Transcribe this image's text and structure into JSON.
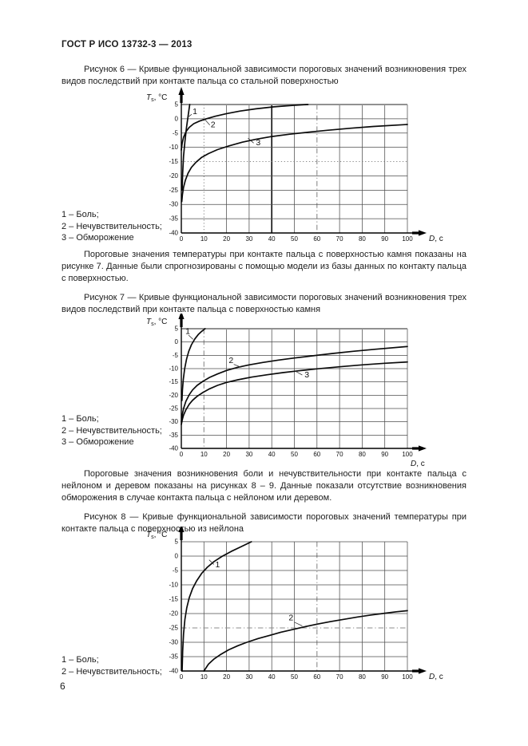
{
  "page": {
    "header": "ГОСТ Р ИСО 13732-3 — 2013",
    "number": "6"
  },
  "paragraphs": {
    "after_fig6": "Пороговые значения температуры при контакте пальца с поверхностью камня показаны на рисунке 7. Данные были спрогнозированы с помощью модели из базы данных по контакту пальца с поверхностью.",
    "after_fig7": "Пороговые значения возникновения боли и нечувствительности при контакте пальца с нейлоном и деревом показаны на рисунках 8 – 9. Данные показали отсутствие возникновения обморожения в случае контакта пальца с нейлоном или деревом."
  },
  "figures": [
    {
      "caption": "Рисунок 6 — Кривые функциональной зависимости пороговых значений возникновения трех видов последствий при контакте пальца со стальной поверхностью",
      "legend": [
        "1 – Боль;",
        "2 – Нечувствительность;",
        "3 – Обморожение"
      ]
    },
    {
      "caption": "Рисунок 7 — Кривые функциональной зависимости пороговых значений возникновения трех видов последствий при контакте пальца с поверхностью камня",
      "legend": [
        "1 – Боль;",
        "2 – Нечувствительность;",
        "3 – Обморожение"
      ]
    },
    {
      "caption": "Рисунок 8 — Кривые функциональной зависимости пороговых значений температуры при контакте пальца с поверхностью из нейлона",
      "legend": [
        "1 – Боль;",
        "2 – Нечувствительность;"
      ]
    }
  ],
  "chart_data": [
    {
      "type": "line",
      "figure": "6",
      "surface": "сталь",
      "xlabel": {
        "base": "D",
        "unit": ", с"
      },
      "ylabel": {
        "base": "T",
        "sub": "s",
        "unit": ", °C"
      },
      "xlim": [
        0,
        100
      ],
      "ylim": [
        -40,
        5
      ],
      "xticks": [
        0,
        10,
        20,
        30,
        40,
        50,
        60,
        70,
        80,
        90,
        100
      ],
      "yticks": [
        5,
        0,
        -5,
        -10,
        -15,
        -20,
        -25,
        -30,
        -35,
        -40
      ],
      "grid": true,
      "special_lines": [
        {
          "axis": "x",
          "at": 10,
          "style": "dotted"
        },
        {
          "axis": "x",
          "at": 40,
          "style": "thick"
        },
        {
          "axis": "x",
          "at": 60,
          "style": "dashdot"
        },
        {
          "axis": "y",
          "at": -15,
          "style": "dotted"
        },
        {
          "axis": "y",
          "at": 5,
          "style": "graythick"
        }
      ],
      "series": [
        {
          "name": "1",
          "label": "Боль",
          "points": [
            [
              0.35,
              -25
            ],
            [
              0.6,
              -19
            ],
            [
              1,
              -13
            ],
            [
              1.6,
              -8
            ],
            [
              2.3,
              -3
            ],
            [
              3,
              1
            ],
            [
              3.7,
              5
            ]
          ],
          "label_pos": [
            5,
            1.6
          ],
          "leader": [
            [
              4.6,
              1.6
            ],
            [
              2.9,
              0.5
            ]
          ]
        },
        {
          "name": "2",
          "label": "Нечувствительность",
          "points": [
            [
              0,
              -11
            ],
            [
              0.4,
              -8.5
            ],
            [
              1,
              -6.5
            ],
            [
              2,
              -4.6
            ],
            [
              3.5,
              -3
            ],
            [
              5.5,
              -1.7
            ],
            [
              8,
              -0.8
            ],
            [
              11,
              0
            ],
            [
              15,
              0.9
            ],
            [
              20,
              1.8
            ],
            [
              26,
              2.7
            ],
            [
              33,
              3.5
            ],
            [
              41,
              4.2
            ],
            [
              49,
              4.7
            ],
            [
              56,
              5
            ]
          ],
          "label_pos": [
            13,
            -3
          ],
          "leader": [
            [
              12.6,
              -2.2
            ],
            [
              10.5,
              -0.3
            ]
          ]
        },
        {
          "name": "3",
          "label": "Обморожение",
          "points": [
            [
              0.2,
              -29
            ],
            [
              0.5,
              -26.5
            ],
            [
              1,
              -24
            ],
            [
              1.8,
              -21.5
            ],
            [
              3,
              -19
            ],
            [
              4.5,
              -17
            ],
            [
              6.5,
              -15.2
            ],
            [
              9,
              -13.5
            ],
            [
              12,
              -12.2
            ],
            [
              16,
              -10.8
            ],
            [
              21,
              -9.5
            ],
            [
              27,
              -8.2
            ],
            [
              33,
              -7.2
            ],
            [
              40,
              -6.2
            ],
            [
              48,
              -5.4
            ],
            [
              56,
              -4.7
            ],
            [
              65,
              -4
            ],
            [
              75,
              -3.3
            ],
            [
              85,
              -2.7
            ],
            [
              100,
              -2
            ]
          ],
          "label_pos": [
            33,
            -9.3
          ],
          "leader": [
            [
              32,
              -8.5
            ],
            [
              29.5,
              -6.8
            ]
          ]
        }
      ]
    },
    {
      "type": "line",
      "figure": "7",
      "surface": "камень",
      "xlabel": {
        "base": "D",
        "unit": ", с"
      },
      "ylabel": {
        "base": "T",
        "sub": "s",
        "unit": ", °C"
      },
      "xlim": [
        0,
        100
      ],
      "ylim": [
        -40,
        5
      ],
      "xticks": [
        0,
        10,
        20,
        30,
        40,
        50,
        60,
        70,
        80,
        90,
        100
      ],
      "yticks": [
        5,
        0,
        -5,
        -10,
        -15,
        -20,
        -25,
        -30,
        -35,
        -40
      ],
      "grid": true,
      "special_lines": [
        {
          "axis": "x",
          "at": 10,
          "style": "dashdot"
        },
        {
          "axis": "y",
          "at": 5,
          "style": "graythick"
        }
      ],
      "series": [
        {
          "name": "1",
          "label": "Боль",
          "points": [
            [
              0.3,
              -22
            ],
            [
              0.5,
              -18
            ],
            [
              0.9,
              -14
            ],
            [
              1.5,
              -10
            ],
            [
              2.3,
              -6.5
            ],
            [
              3.3,
              -3.5
            ],
            [
              4.5,
              -1
            ],
            [
              6,
              1.2
            ],
            [
              7.5,
              2.8
            ],
            [
              9,
              4
            ],
            [
              10.5,
              5
            ]
          ],
          "label_pos": [
            1.8,
            3
          ],
          "leader": [
            [
              3.2,
              2.6
            ],
            [
              5.2,
              1
            ]
          ]
        },
        {
          "name": "2",
          "label": "Нечувствительность",
          "points": [
            [
              0,
              -30
            ],
            [
              0.5,
              -27
            ],
            [
              1,
              -25
            ],
            [
              2,
              -22.3
            ],
            [
              3.5,
              -19.8
            ],
            [
              5,
              -18
            ],
            [
              7,
              -16.3
            ],
            [
              9.5,
              -14.8
            ],
            [
              12.5,
              -13.3
            ],
            [
              16,
              -12
            ],
            [
              20,
              -10.7
            ],
            [
              25,
              -9.5
            ],
            [
              30,
              -8.6
            ],
            [
              36,
              -7.7
            ],
            [
              43,
              -6.8
            ],
            [
              50,
              -6
            ],
            [
              58,
              -5.2
            ],
            [
              67,
              -4.3
            ],
            [
              76,
              -3.5
            ],
            [
              86,
              -2.7
            ],
            [
              100,
              -1.7
            ]
          ],
          "label_pos": [
            21,
            -7.9
          ],
          "leader": [
            [
              23.2,
              -8.4
            ],
            [
              26.5,
              -9.5
            ]
          ]
        },
        {
          "name": "3",
          "label": "Обморожение",
          "points": [
            [
              0,
              -31
            ],
            [
              0.5,
              -29
            ],
            [
              1,
              -27.5
            ],
            [
              2,
              -25.5
            ],
            [
              3.5,
              -23.4
            ],
            [
              5,
              -21.9
            ],
            [
              7,
              -20.4
            ],
            [
              9.5,
              -19
            ],
            [
              12.5,
              -17.6
            ],
            [
              16,
              -16.3
            ],
            [
              20,
              -15.2
            ],
            [
              25,
              -14.2
            ],
            [
              31,
              -13.2
            ],
            [
              38,
              -12.3
            ],
            [
              45,
              -11.5
            ],
            [
              52,
              -10.8
            ],
            [
              60,
              -10.1
            ],
            [
              70,
              -9.3
            ],
            [
              80,
              -8.6
            ],
            [
              90,
              -8
            ],
            [
              100,
              -7.5
            ]
          ],
          "label_pos": [
            54.5,
            -13.3
          ],
          "leader": [
            [
              53.5,
              -12.4
            ],
            [
              50.5,
              -11
            ]
          ]
        }
      ]
    },
    {
      "type": "line",
      "figure": "8",
      "surface": "нейлон",
      "xlabel": {
        "base": "D",
        "unit": ", с"
      },
      "ylabel": {
        "base": "T",
        "sub": "s",
        "unit": ", °C"
      },
      "xlim": [
        0,
        100
      ],
      "ylim": [
        -40,
        5
      ],
      "xticks": [
        0,
        10,
        20,
        30,
        40,
        50,
        60,
        70,
        80,
        90,
        100
      ],
      "yticks": [
        5,
        0,
        -5,
        -10,
        -15,
        -20,
        -25,
        -30,
        -35,
        -40
      ],
      "grid": true,
      "special_lines": [
        {
          "axis": "x",
          "at": 60,
          "style": "dashdot"
        },
        {
          "axis": "y",
          "at": -25,
          "style": "dashdot"
        }
      ],
      "series": [
        {
          "name": "1",
          "label": "Боль",
          "points": [
            [
              0.35,
              -40
            ],
            [
              0.6,
              -33
            ],
            [
              1,
              -27
            ],
            [
              1.6,
              -22
            ],
            [
              2.4,
              -18
            ],
            [
              3.5,
              -14.5
            ],
            [
              5,
              -11.3
            ],
            [
              6.8,
              -8.6
            ],
            [
              9,
              -6
            ],
            [
              11.5,
              -3.9
            ],
            [
              14.5,
              -1.9
            ],
            [
              18,
              -0.1
            ],
            [
              22,
              1.6
            ],
            [
              26.5,
              3.3
            ],
            [
              31,
              5
            ]
          ],
          "label_pos": [
            15,
            -3.9
          ],
          "leader": [
            [
              14.4,
              -2.9
            ],
            [
              12.3,
              -1.3
            ]
          ]
        },
        {
          "name": "2",
          "label": "Нечувствительность",
          "points": [
            [
              10,
              -40
            ],
            [
              12,
              -37.6
            ],
            [
              14.5,
              -35.8
            ],
            [
              17.5,
              -34.2
            ],
            [
              21,
              -32.6
            ],
            [
              25,
              -31.2
            ],
            [
              29,
              -30
            ],
            [
              34,
              -28.7
            ],
            [
              39,
              -27.6
            ],
            [
              44,
              -26.5
            ],
            [
              49,
              -25.6
            ],
            [
              54,
              -24.7
            ],
            [
              60,
              -23.7
            ],
            [
              66,
              -22.8
            ],
            [
              72,
              -22
            ],
            [
              78,
              -21.2
            ],
            [
              84,
              -20.5
            ],
            [
              90,
              -19.9
            ],
            [
              95,
              -19.4
            ],
            [
              100,
              -19
            ]
          ],
          "label_pos": [
            47.5,
            -22.3
          ],
          "leader": [
            [
              50,
              -23
            ],
            [
              53.5,
              -24.3
            ]
          ]
        }
      ]
    }
  ]
}
